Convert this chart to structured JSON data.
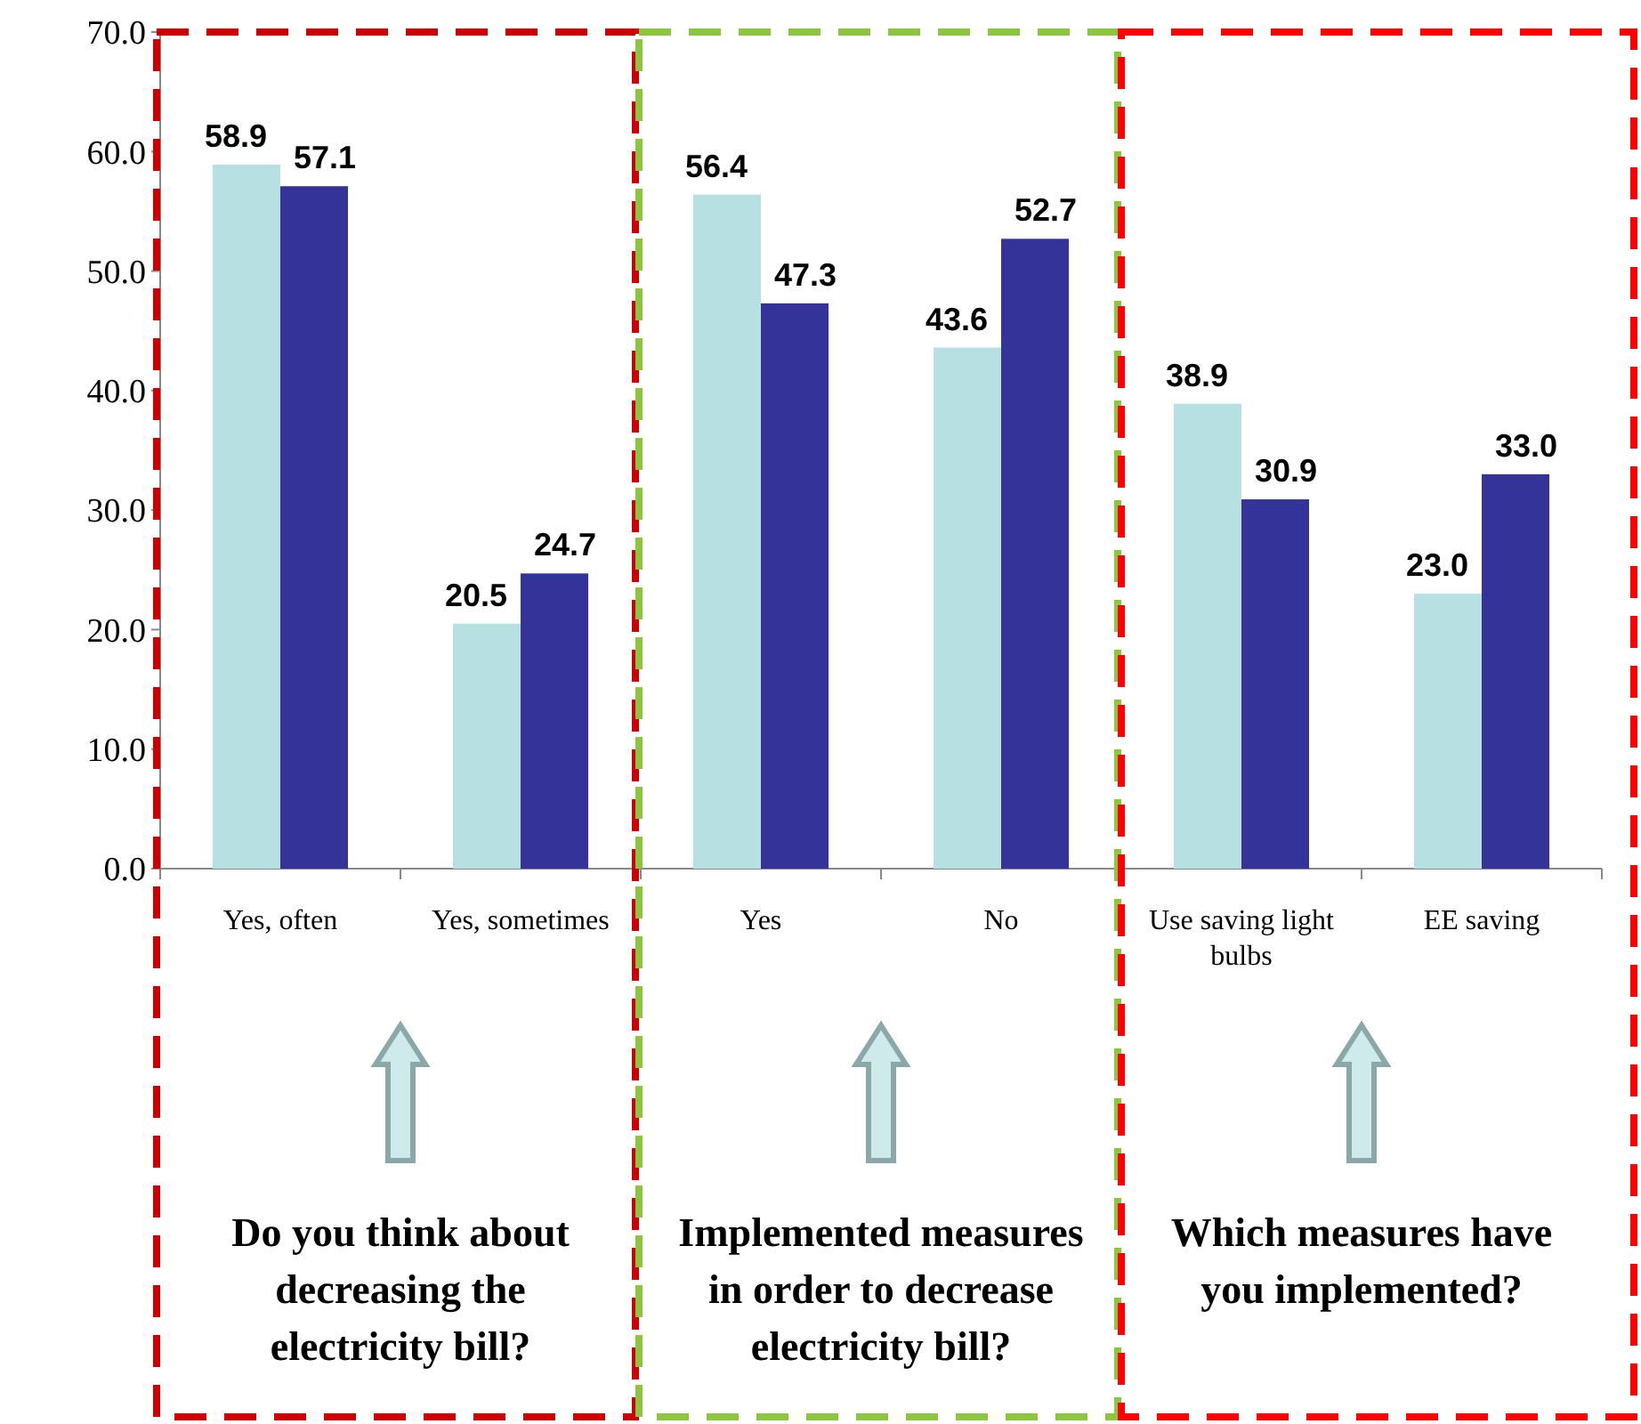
{
  "chart_data": {
    "type": "bar",
    "categories": [
      "Yes, often",
      "Yes, sometimes",
      "Yes",
      "No",
      "Use saving light bulbs",
      "EE saving"
    ],
    "series": [
      {
        "color": "#b7e0e3",
        "values": [
          58.9,
          20.5,
          56.4,
          43.6,
          38.9,
          23.0
        ],
        "value_labels": [
          "58.9",
          "20.5",
          "56.4",
          "43.6",
          "38.9",
          "23.0"
        ]
      },
      {
        "color": "#333399",
        "values": [
          57.1,
          24.7,
          47.3,
          52.7,
          30.9,
          33.0
        ],
        "value_labels": [
          "57.1",
          "24.7",
          "47.3",
          "52.7",
          "30.9",
          "33.0"
        ]
      }
    ],
    "ylim": [
      0,
      70
    ],
    "yticks": [
      {
        "value": 0,
        "label": "0.0"
      },
      {
        "value": 10,
        "label": "10.0"
      },
      {
        "value": 20,
        "label": "20.0"
      },
      {
        "value": 30,
        "label": "30.0"
      },
      {
        "value": 40,
        "label": "40.0"
      },
      {
        "value": 50,
        "label": "50.0"
      },
      {
        "value": 60,
        "label": "60.0"
      },
      {
        "value": 70,
        "label": "70.0"
      }
    ],
    "grid": false,
    "annotations": [
      "Do you think about decreasing the electricity bill?",
      "Implemented measures in order to decrease electricity bill?",
      "Which measures have you implemented?"
    ]
  }
}
